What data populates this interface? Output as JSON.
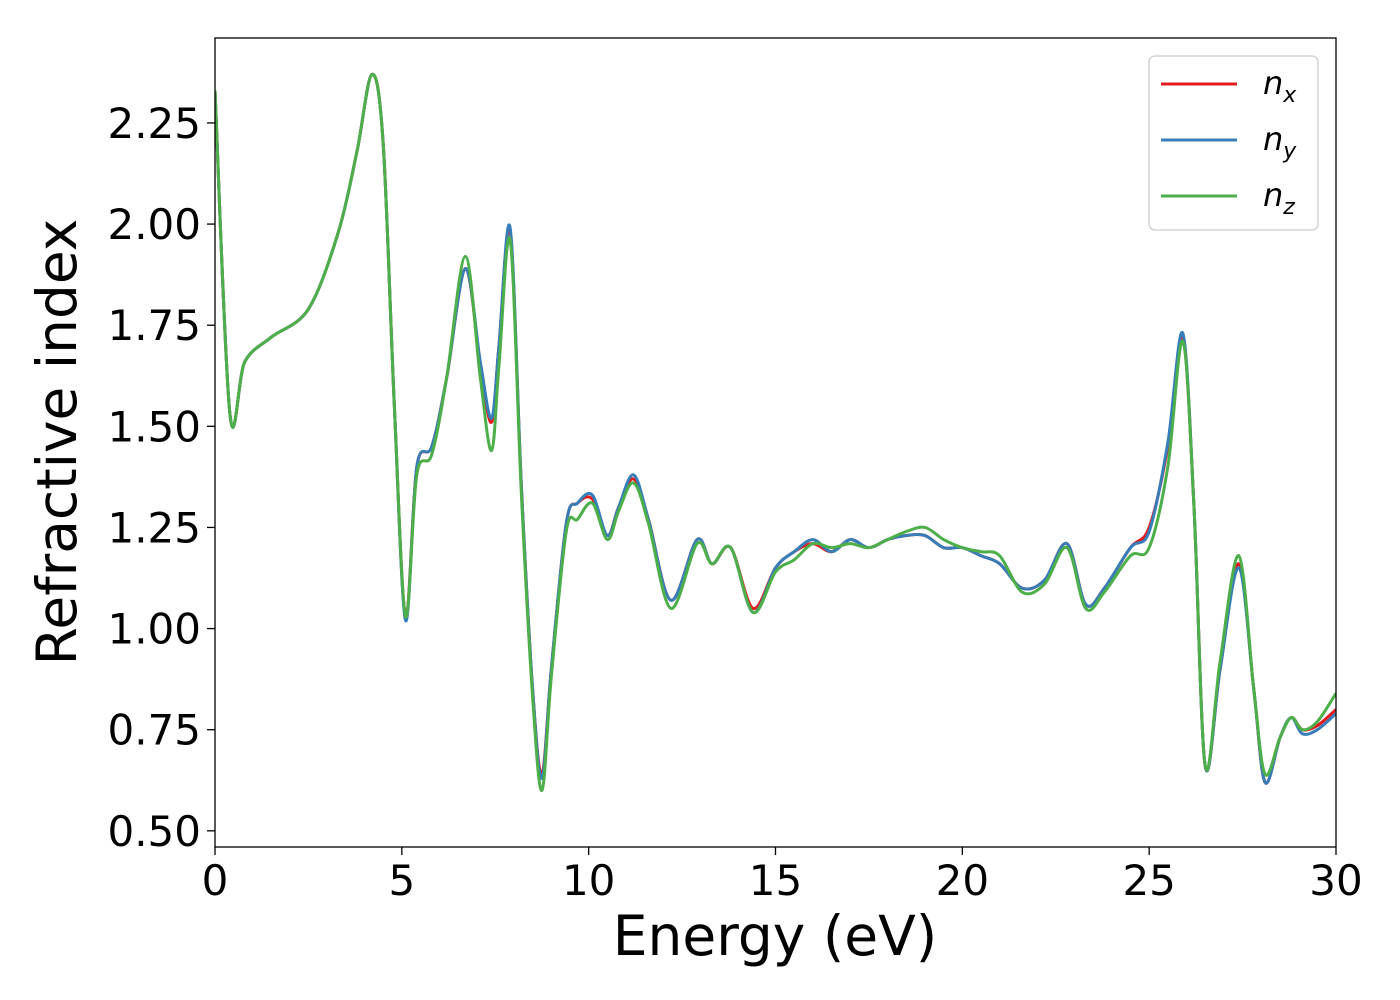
{
  "chart_data": {
    "type": "line",
    "title": "",
    "xlabel": "Energy (eV)",
    "ylabel": "Refractive index",
    "xlim": [
      0,
      30
    ],
    "ylim": [
      0.46,
      2.46
    ],
    "x_ticks": [
      "0",
      "5",
      "10",
      "15",
      "20",
      "25",
      "30"
    ],
    "y_ticks": [
      "0.50",
      "0.75",
      "1.00",
      "1.25",
      "1.50",
      "1.75",
      "2.00",
      "2.25"
    ],
    "grid": false,
    "legend_position": "top-right",
    "series": [
      {
        "name": "n",
        "subscript": "x",
        "color": "#e41a1c",
        "x": [
          0,
          0.4,
          0.8,
          1.5,
          2.5,
          3.3,
          3.8,
          4.2,
          4.5,
          4.8,
          5.1,
          5.4,
          5.8,
          6.2,
          6.7,
          7.1,
          7.4,
          7.6,
          7.9,
          8.2,
          8.5,
          8.75,
          9.0,
          9.4,
          9.7,
          10.1,
          10.5,
          10.8,
          11.2,
          11.6,
          12.2,
          12.9,
          13.3,
          13.8,
          14.4,
          15.0,
          15.5,
          16.0,
          16.5,
          17.0,
          17.5,
          18.0,
          18.5,
          19.0,
          19.5,
          20.0,
          20.5,
          21.0,
          21.6,
          22.2,
          22.8,
          23.3,
          23.8,
          24.5,
          25.0,
          25.5,
          25.9,
          26.2,
          26.5,
          26.9,
          27.4,
          27.8,
          28.1,
          28.5,
          28.8,
          29.1,
          29.5,
          30.0
        ],
        "y": [
          2.33,
          1.53,
          1.66,
          1.72,
          1.79,
          1.98,
          2.18,
          2.37,
          2.2,
          1.55,
          1.03,
          1.4,
          1.45,
          1.62,
          1.89,
          1.65,
          1.51,
          1.7,
          1.98,
          1.35,
          0.85,
          0.64,
          0.9,
          1.26,
          1.31,
          1.32,
          1.23,
          1.3,
          1.37,
          1.27,
          1.07,
          1.22,
          1.16,
          1.2,
          1.05,
          1.15,
          1.19,
          1.21,
          1.19,
          1.22,
          1.2,
          1.22,
          1.23,
          1.23,
          1.2,
          1.2,
          1.18,
          1.16,
          1.1,
          1.12,
          1.21,
          1.06,
          1.1,
          1.2,
          1.25,
          1.45,
          1.72,
          1.3,
          0.66,
          0.9,
          1.16,
          0.85,
          0.62,
          0.73,
          0.78,
          0.75,
          0.76,
          0.8
        ]
      },
      {
        "name": "n",
        "subscript": "y",
        "color": "#377eb8",
        "x": [
          0,
          0.4,
          0.8,
          1.5,
          2.5,
          3.3,
          3.8,
          4.2,
          4.5,
          4.8,
          5.1,
          5.4,
          5.8,
          6.2,
          6.7,
          7.1,
          7.4,
          7.6,
          7.9,
          8.2,
          8.5,
          8.75,
          9.0,
          9.4,
          9.7,
          10.1,
          10.5,
          10.8,
          11.2,
          11.6,
          12.2,
          12.9,
          13.3,
          13.8,
          14.4,
          15.0,
          15.5,
          16.0,
          16.5,
          17.0,
          17.5,
          18.0,
          18.5,
          19.0,
          19.5,
          20.0,
          20.5,
          21.0,
          21.6,
          22.2,
          22.8,
          23.3,
          23.8,
          24.5,
          25.0,
          25.5,
          25.9,
          26.2,
          26.5,
          26.9,
          27.4,
          27.8,
          28.1,
          28.5,
          28.8,
          29.1,
          29.5,
          30.0
        ],
        "y": [
          2.33,
          1.53,
          1.66,
          1.72,
          1.79,
          1.98,
          2.18,
          2.37,
          2.2,
          1.55,
          1.02,
          1.4,
          1.45,
          1.62,
          1.89,
          1.66,
          1.52,
          1.7,
          1.99,
          1.35,
          0.85,
          0.63,
          0.9,
          1.26,
          1.31,
          1.33,
          1.23,
          1.3,
          1.38,
          1.27,
          1.07,
          1.22,
          1.16,
          1.2,
          1.04,
          1.15,
          1.19,
          1.22,
          1.19,
          1.22,
          1.2,
          1.22,
          1.23,
          1.23,
          1.2,
          1.2,
          1.18,
          1.16,
          1.1,
          1.12,
          1.21,
          1.06,
          1.1,
          1.2,
          1.24,
          1.46,
          1.73,
          1.3,
          0.66,
          0.9,
          1.15,
          0.85,
          0.62,
          0.73,
          0.78,
          0.74,
          0.75,
          0.79
        ]
      },
      {
        "name": "n",
        "subscript": "z",
        "color": "#4daf4a",
        "x": [
          0,
          0.4,
          0.8,
          1.5,
          2.5,
          3.3,
          3.8,
          4.2,
          4.5,
          4.8,
          5.1,
          5.4,
          5.8,
          6.2,
          6.7,
          7.1,
          7.4,
          7.6,
          7.9,
          8.2,
          8.5,
          8.75,
          9.0,
          9.4,
          9.7,
          10.1,
          10.5,
          10.8,
          11.2,
          11.6,
          12.2,
          12.9,
          13.3,
          13.8,
          14.4,
          15.0,
          15.5,
          16.0,
          16.5,
          17.0,
          17.5,
          18.0,
          18.5,
          19.0,
          19.5,
          20.0,
          20.5,
          21.0,
          21.6,
          22.2,
          22.8,
          23.3,
          23.8,
          24.5,
          25.0,
          25.5,
          25.9,
          26.2,
          26.5,
          26.9,
          27.4,
          27.8,
          28.1,
          28.5,
          28.8,
          29.1,
          29.5,
          30.0
        ],
        "y": [
          2.33,
          1.53,
          1.66,
          1.72,
          1.79,
          1.98,
          2.18,
          2.37,
          2.2,
          1.55,
          1.03,
          1.38,
          1.43,
          1.62,
          1.92,
          1.62,
          1.44,
          1.65,
          1.96,
          1.33,
          0.83,
          0.6,
          0.88,
          1.24,
          1.27,
          1.31,
          1.22,
          1.29,
          1.36,
          1.26,
          1.05,
          1.21,
          1.16,
          1.2,
          1.04,
          1.14,
          1.17,
          1.21,
          1.2,
          1.21,
          1.2,
          1.22,
          1.24,
          1.25,
          1.22,
          1.2,
          1.19,
          1.18,
          1.09,
          1.11,
          1.2,
          1.05,
          1.09,
          1.18,
          1.2,
          1.4,
          1.71,
          1.3,
          0.66,
          0.92,
          1.18,
          0.85,
          0.64,
          0.73,
          0.78,
          0.75,
          0.77,
          0.84
        ]
      }
    ]
  }
}
